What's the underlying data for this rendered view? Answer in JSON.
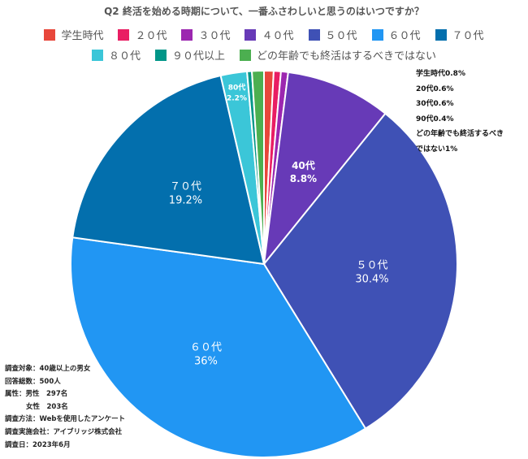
{
  "chart_data": {
    "type": "pie",
    "title": "Q2 終活を始める時期について、一番ふさわしいと思うのはいつですか？",
    "slices": [
      {
        "label": "学生時代",
        "value": 0.8,
        "color": "#e8473b"
      },
      {
        "label": "２０代",
        "value": 0.6,
        "color": "#e91e63"
      },
      {
        "label": "３０代",
        "value": 0.6,
        "color": "#9c27b0"
      },
      {
        "label": "４０代",
        "value": 8.8,
        "color": "#673ab7"
      },
      {
        "label": "５０代",
        "value": 30.4,
        "color": "#3f51b5"
      },
      {
        "label": "６０代",
        "value": 36,
        "color": "#2196f3"
      },
      {
        "label": "７０代",
        "value": 19.2,
        "color": "#036fad"
      },
      {
        "label": "８０代",
        "value": 2.2,
        "color": "#3bc6d8"
      },
      {
        "label": "９０代以上",
        "value": 0.4,
        "color": "#009688"
      },
      {
        "label": "どの年齢でも終活はするべきではない",
        "value": 1,
        "color": "#4caf50"
      }
    ],
    "slice_labels": {
      "４０代": [
        "40代",
        "8.8%"
      ],
      "５０代": [
        "５０代",
        "30.4%"
      ],
      "６０代": [
        "６０代",
        "36%"
      ],
      "７０代": [
        "７０代",
        "19.2%"
      ],
      "８０代": [
        "80代",
        "2.2%"
      ]
    },
    "legend_position": "top"
  },
  "callout_notes": [
    "学生時代0.8%",
    "20代0.6%",
    "30代0.6%",
    "90代0.4%",
    "どの年齢でも終活するべき",
    "ではない1%"
  ],
  "survey_info": [
    "調査対象：40歳以上の男女",
    "回答総数：500人",
    "属性：男性　297名",
    "女性　203名",
    "調査方法：Webを使用したアンケート",
    "調査実施会社：アイブリッジ株式会社",
    "調査日：2023年6月"
  ]
}
